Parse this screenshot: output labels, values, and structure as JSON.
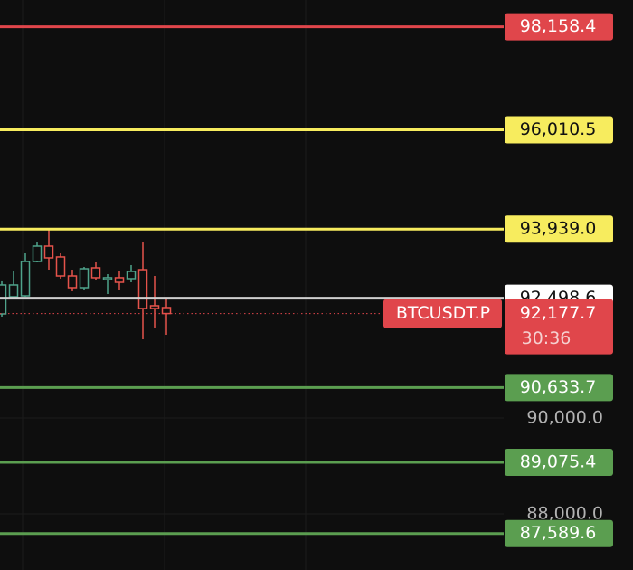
{
  "chart_data": {
    "type": "candlestick",
    "ylim": [
      86830,
      98717
    ],
    "yticks": [
      {
        "value": 90000,
        "label": "90,000.0"
      },
      {
        "value": 88000,
        "label": "88,000.0"
      }
    ],
    "grid": true,
    "up_color": "#4fa38b",
    "down_color": "#e5534b",
    "open": [
      92170,
      92528,
      92547,
      93264,
      93585,
      93359,
      92962,
      92717,
      93132,
      92887,
      92925,
      92906,
      93094,
      92340,
      92302
    ],
    "high": [
      92850,
      93057,
      93434,
      93660,
      93924,
      93434,
      93094,
      93151,
      93245,
      93000,
      93057,
      93189,
      93660,
      92962,
      92491
    ],
    "low": [
      92113,
      92491,
      92528,
      93245,
      93094,
      92906,
      92642,
      92679,
      92868,
      92585,
      92679,
      92830,
      91641,
      91887,
      91736
    ],
    "close": [
      92774,
      92774,
      93264,
      93585,
      93340,
      92962,
      92717,
      93113,
      92925,
      92925,
      92830,
      93057,
      92283,
      92283,
      92177.7
    ],
    "levels": [
      {
        "value": 98158.4,
        "label": "98,158.4",
        "color": "#e0464b",
        "text_color": "#ffffff"
      },
      {
        "value": 96010.5,
        "label": "96,010.5",
        "color": "#f7ec5e",
        "text_color": "#111111"
      },
      {
        "value": 93939.0,
        "label": "93,939.0",
        "color": "#f7ec5e",
        "text_color": "#111111"
      },
      {
        "value": 92498.6,
        "label": "92,498.6",
        "color": "#cfcfcf",
        "text_color": "#111111",
        "label_bg": "#ffffff"
      },
      {
        "value": 90633.7,
        "label": "90,633.7",
        "color": "#5b9e50",
        "text_color": "#ffffff"
      },
      {
        "value": 89075.4,
        "label": "89,075.4",
        "color": "#5b9e50",
        "text_color": "#ffffff"
      },
      {
        "value": 87589.6,
        "label": "87,589.6",
        "color": "#5b9e50",
        "text_color": "#ffffff"
      }
    ],
    "last_price": {
      "value": 92177.7,
      "label": "92,177.7"
    },
    "symbol": "BTCUSDT.P",
    "countdown": "30:36",
    "last_color": "#e0464b"
  }
}
